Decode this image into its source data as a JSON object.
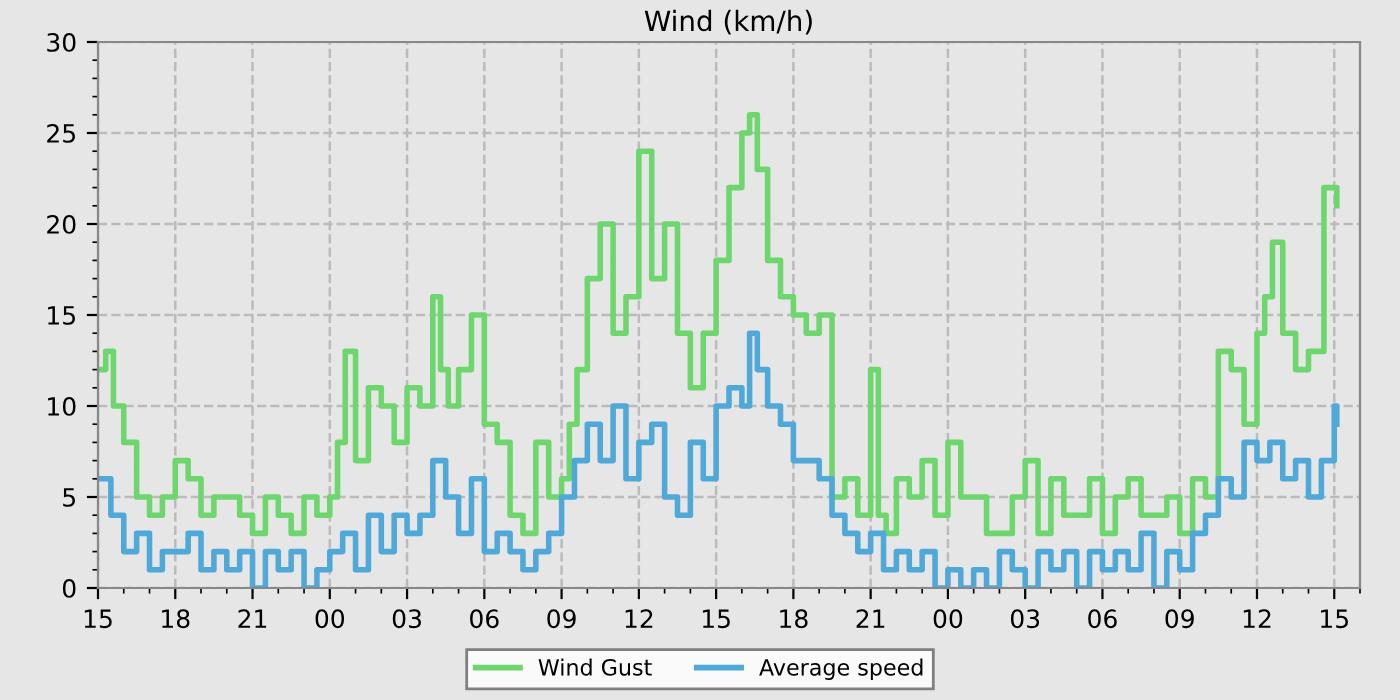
{
  "chart_data": {
    "type": "step",
    "title": "Wind (km/h)",
    "xlim": [
      15,
      64
    ],
    "ylim": [
      0,
      30
    ],
    "yticks": [
      0,
      5,
      10,
      15,
      20,
      25,
      30
    ],
    "xticks": [
      15,
      18,
      21,
      {
        "value": 24,
        "label": "00"
      },
      {
        "value": 27,
        "label": "03"
      },
      {
        "value": 30,
        "label": "06"
      },
      {
        "value": 33,
        "label": "09"
      },
      {
        "value": 36,
        "label": "12"
      },
      {
        "value": 39,
        "label": "15"
      },
      {
        "value": 42,
        "label": "18"
      },
      {
        "value": 45,
        "label": "21"
      },
      {
        "value": 48,
        "label": "00"
      },
      {
        "value": 51,
        "label": "03"
      },
      {
        "value": 54,
        "label": "06"
      },
      {
        "value": 57,
        "label": "09"
      },
      {
        "value": 60,
        "label": "12"
      },
      {
        "value": 63,
        "label": "15"
      }
    ],
    "grid": true,
    "legend": "bottom",
    "line_style": "solid",
    "marker": "none",
    "series": [
      {
        "name": "Wind Gust",
        "color": "#6dd66d",
        "x": [
          15,
          15.3,
          15.6,
          16,
          16.5,
          17,
          17.5,
          18,
          18.5,
          19,
          19.5,
          20,
          20.5,
          21,
          21.5,
          22,
          22.5,
          23,
          23.5,
          24,
          24.3,
          24.6,
          25,
          25.5,
          26,
          26.5,
          27,
          27.5,
          28,
          28.3,
          28.6,
          29,
          29.5,
          30,
          30.5,
          31,
          31.5,
          32,
          32.5,
          33,
          33.3,
          33.6,
          34,
          34.5,
          35,
          35.5,
          36,
          36.5,
          37,
          37.5,
          38,
          38.5,
          39,
          39.5,
          40,
          40.3,
          40.6,
          41,
          41.5,
          42,
          42.5,
          43,
          43.5,
          44,
          44.5,
          45,
          45.3,
          45.6,
          46,
          46.5,
          47,
          47.5,
          48,
          48.5,
          49,
          49.5,
          50,
          50.5,
          51,
          51.5,
          52,
          52.5,
          53,
          53.5,
          54,
          54.5,
          55,
          55.5,
          56,
          56.5,
          57,
          57.5,
          58,
          58.5,
          59,
          59.5,
          60,
          60.3,
          60.6,
          61,
          61.5,
          62,
          62.3,
          62.6,
          63,
          63.1
        ],
        "values": [
          12,
          13,
          10,
          8,
          5,
          4,
          5,
          7,
          6,
          4,
          5,
          5,
          4,
          3,
          5,
          4,
          3,
          5,
          4,
          5,
          8,
          13,
          7,
          11,
          10,
          8,
          11,
          10,
          16,
          12,
          10,
          12,
          15,
          9,
          8,
          4,
          3,
          8,
          5,
          6,
          9,
          12,
          17,
          20,
          14,
          16,
          24,
          17,
          20,
          14,
          11,
          14,
          18,
          22,
          25,
          26,
          23,
          18,
          16,
          15,
          14,
          15,
          5,
          6,
          4,
          12,
          4,
          3,
          6,
          5,
          7,
          4,
          8,
          5,
          5,
          3,
          3,
          5,
          7,
          3,
          6,
          4,
          4,
          6,
          3,
          5,
          6,
          4,
          4,
          5,
          3,
          6,
          5,
          13,
          12,
          9,
          14,
          16,
          19,
          14,
          12,
          13,
          13,
          22,
          22,
          21
        ]
      },
      {
        "name": "Average speed",
        "color": "#4ea8d8",
        "x": [
          15,
          15.5,
          16,
          16.5,
          17,
          17.5,
          18,
          18.5,
          19,
          19.5,
          20,
          20.5,
          21,
          21.5,
          22,
          22.5,
          23,
          23.5,
          24,
          24.5,
          25,
          25.5,
          26,
          26.5,
          27,
          27.5,
          28,
          28.5,
          29,
          29.5,
          30,
          30.5,
          31,
          31.5,
          32,
          32.5,
          33,
          33.5,
          34,
          34.5,
          35,
          35.5,
          36,
          36.5,
          37,
          37.5,
          38,
          38.5,
          39,
          39.5,
          40,
          40.3,
          40.6,
          41,
          41.5,
          42,
          42.5,
          43,
          43.5,
          44,
          44.5,
          45,
          45.5,
          46,
          46.5,
          47,
          47.5,
          48,
          48.5,
          49,
          49.5,
          50,
          50.5,
          51,
          51.5,
          52,
          52.5,
          53,
          53.5,
          54,
          54.5,
          55,
          55.5,
          56,
          56.5,
          57,
          57.5,
          58,
          58.5,
          59,
          59.5,
          60,
          60.5,
          61,
          61.5,
          62,
          62.5,
          63,
          63.1
        ],
        "values": [
          6,
          4,
          2,
          3,
          1,
          2,
          2,
          3,
          1,
          2,
          1,
          2,
          0,
          2,
          1,
          2,
          0,
          1,
          2,
          3,
          1,
          4,
          2,
          4,
          3,
          4,
          7,
          5,
          3,
          6,
          2,
          3,
          2,
          1,
          2,
          3,
          5,
          7,
          9,
          7,
          10,
          6,
          8,
          9,
          5,
          4,
          8,
          6,
          10,
          11,
          10,
          14,
          12,
          10,
          9,
          7,
          7,
          6,
          4,
          3,
          2,
          3,
          1,
          2,
          1,
          2,
          0,
          1,
          0,
          1,
          0,
          2,
          1,
          0,
          2,
          1,
          2,
          0,
          2,
          1,
          2,
          1,
          3,
          0,
          2,
          1,
          3,
          4,
          6,
          5,
          8,
          7,
          8,
          6,
          7,
          5,
          7,
          10,
          9
        ]
      }
    ]
  }
}
